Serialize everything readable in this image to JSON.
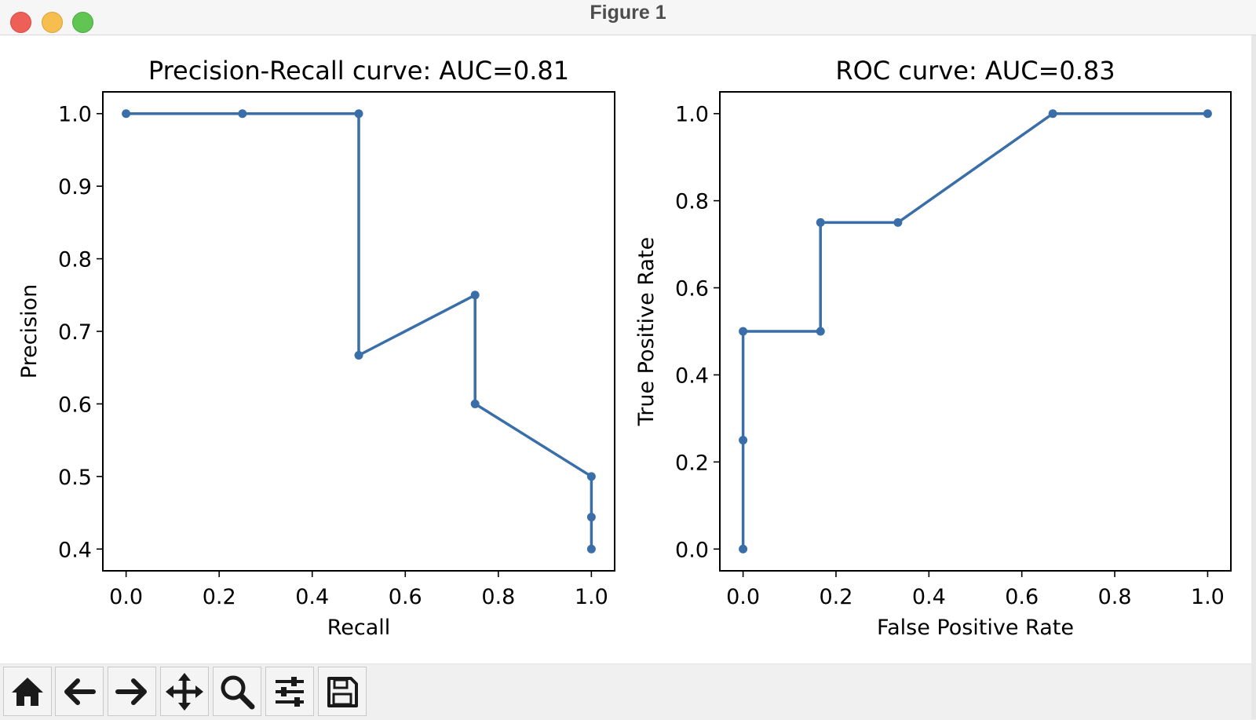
{
  "window": {
    "title": "Figure 1"
  },
  "toolbar": {
    "tools": [
      {
        "icon": "home-icon"
      },
      {
        "icon": "back-arrow-icon"
      },
      {
        "icon": "forward-arrow-icon"
      },
      {
        "icon": "pan-move-icon"
      },
      {
        "icon": "zoom-magnifier-icon"
      },
      {
        "icon": "configure-subplots-icon"
      },
      {
        "icon": "save-disk-icon"
      }
    ]
  },
  "colors": {
    "line": "#3a6ea8",
    "axes": "#000000"
  },
  "chart_data": [
    {
      "type": "line",
      "title": "Precision-Recall curve: AUC=0.81",
      "xlabel": "Recall",
      "ylabel": "Precision",
      "xlim": [
        -0.05,
        1.05
      ],
      "ylim": [
        0.37,
        1.03
      ],
      "xticks": [
        "0.0",
        "0.2",
        "0.4",
        "0.6",
        "0.8",
        "1.0"
      ],
      "yticks": [
        "0.4",
        "0.5",
        "0.6",
        "0.7",
        "0.8",
        "0.9",
        "1.0"
      ],
      "grid": false,
      "series": [
        {
          "x": [
            0.0,
            0.25,
            0.5,
            0.5,
            0.75,
            0.75,
            1.0,
            1.0,
            1.0
          ],
          "y": [
            1.0,
            1.0,
            1.0,
            0.667,
            0.75,
            0.6,
            0.5,
            0.444,
            0.4
          ]
        }
      ]
    },
    {
      "type": "line",
      "title": "ROC curve: AUC=0.83",
      "xlabel": "False Positive Rate",
      "ylabel": "True Positive Rate",
      "xlim": [
        -0.05,
        1.05
      ],
      "ylim": [
        -0.05,
        1.05
      ],
      "xticks": [
        "0.0",
        "0.2",
        "0.4",
        "0.6",
        "0.8",
        "1.0"
      ],
      "yticks": [
        "0.0",
        "0.2",
        "0.4",
        "0.6",
        "0.8",
        "1.0"
      ],
      "grid": false,
      "series": [
        {
          "x": [
            0.0,
            0.0,
            0.0,
            0.1667,
            0.1667,
            0.3333,
            0.6667,
            1.0
          ],
          "y": [
            0.0,
            0.25,
            0.5,
            0.5,
            0.75,
            0.75,
            1.0,
            1.0
          ]
        }
      ]
    }
  ]
}
